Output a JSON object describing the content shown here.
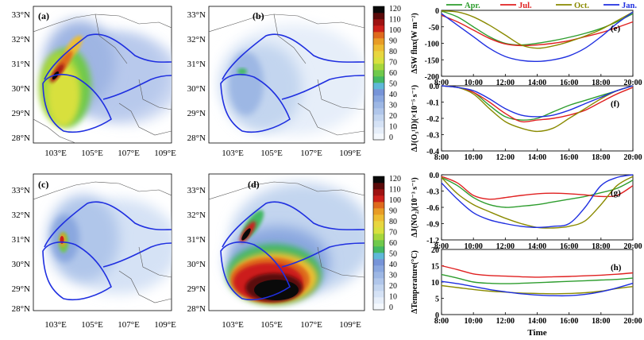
{
  "maps": [
    {
      "label": "(a)",
      "lat_ticks": [
        "33°N",
        "32°N",
        "31°N",
        "30°N",
        "29°N",
        "28°N"
      ],
      "lon_ticks": [
        "103°E",
        "105°E",
        "107°E",
        "109°E"
      ]
    },
    {
      "label": "(b)",
      "lat_ticks": [
        "33°N",
        "32°N",
        "31°N",
        "30°N",
        "29°N",
        "28°N"
      ],
      "lon_ticks": [
        "103°E",
        "105°E",
        "107°E",
        "109°E"
      ]
    },
    {
      "label": "(c)",
      "lat_ticks": [
        "33°N",
        "32°N",
        "31°N",
        "30°N",
        "29°N",
        "28°N"
      ],
      "lon_ticks": [
        "103°E",
        "105°E",
        "107°E",
        "109°E"
      ]
    },
    {
      "label": "(d)",
      "lat_ticks": [
        "33°N",
        "32°N",
        "31°N",
        "30°N",
        "29°N",
        "28°N"
      ],
      "lon_ticks": [
        "103°E",
        "105°E",
        "107°E",
        "109°E"
      ]
    }
  ],
  "colorbar_labels": [
    "120",
    "110",
    "100",
    "90",
    "80",
    "70",
    "60",
    "50",
    "40",
    "30",
    "20",
    "10",
    "0"
  ],
  "colorbar_colors": [
    "#f4f8fd",
    "#e6eef9",
    "#d5e2f5",
    "#c3d5ef",
    "#b0c6ea",
    "#9db7e4",
    "#8aa7df",
    "#7794d8",
    "#5fb8d8",
    "#43b864",
    "#6fc94c",
    "#a5d63c",
    "#d8e03e",
    "#e8d640",
    "#edbd33",
    "#e89c26",
    "#de6a1e",
    "#cc1f1a",
    "#9e1212",
    "#5a0a0a",
    "#0a0a0a"
  ],
  "chart_data": [
    {
      "type": "line",
      "label": "(e)",
      "ylabel": "ΔSW flux(W m⁻²)",
      "xlabel": "",
      "ylim": [
        -200,
        0
      ],
      "yticks": [
        "0",
        "-50",
        "-100",
        "-150",
        "-200"
      ],
      "x": [
        "8:00",
        "9:00",
        "10:00",
        "11:00",
        "12:00",
        "13:00",
        "14:00",
        "15:00",
        "16:00",
        "17:00",
        "18:00",
        "19:00",
        "20:00"
      ],
      "xticks": [
        "8:00",
        "10:00",
        "12:00",
        "14:00",
        "16:00",
        "18:00",
        "20:00"
      ],
      "series": [
        {
          "name": "Apr.",
          "color": "#2e9d2e",
          "values": [
            -2,
            -20,
            -50,
            -80,
            -100,
            -105,
            -100,
            -92,
            -82,
            -70,
            -55,
            -35,
            -10
          ]
        },
        {
          "name": "Jul.",
          "color": "#e02020",
          "values": [
            -15,
            -35,
            -60,
            -85,
            -102,
            -107,
            -105,
            -100,
            -92,
            -80,
            -68,
            -52,
            -35
          ]
        },
        {
          "name": "Oct.",
          "color": "#8a8a00",
          "values": [
            -2,
            -5,
            -20,
            -45,
            -75,
            -105,
            -115,
            -108,
            -95,
            -78,
            -58,
            -32,
            -5
          ]
        },
        {
          "name": "Jan.",
          "color": "#1f2fe0",
          "values": [
            -10,
            -45,
            -80,
            -115,
            -140,
            -152,
            -155,
            -150,
            -138,
            -115,
            -80,
            -40,
            -5
          ]
        }
      ]
    },
    {
      "type": "line",
      "label": "(f)",
      "ylabel": "ΔJ(O₃¹D)(×10⁻⁵ s⁻¹)",
      "xlabel": "",
      "ylim": [
        -0.4,
        0
      ],
      "yticks": [
        "0.0",
        "-0.1",
        "-0.2",
        "-0.3",
        "-0.4"
      ],
      "x": [
        "8:00",
        "9:00",
        "10:00",
        "11:00",
        "12:00",
        "13:00",
        "14:00",
        "15:00",
        "16:00",
        "17:00",
        "18:00",
        "19:00",
        "20:00"
      ],
      "xticks": [
        "8:00",
        "10:00",
        "12:00",
        "14:00",
        "16:00",
        "18:00",
        "20:00"
      ],
      "series": [
        {
          "name": "Apr.",
          "color": "#2e9d2e",
          "values": [
            0,
            -0.01,
            -0.04,
            -0.12,
            -0.19,
            -0.21,
            -0.2,
            -0.16,
            -0.12,
            -0.09,
            -0.06,
            -0.03,
            0
          ]
        },
        {
          "name": "Jul.",
          "color": "#e02020",
          "values": [
            0,
            -0.01,
            -0.04,
            -0.1,
            -0.17,
            -0.22,
            -0.21,
            -0.2,
            -0.18,
            -0.15,
            -0.1,
            -0.05,
            -0.01
          ]
        },
        {
          "name": "Oct.",
          "color": "#8a8a00",
          "values": [
            0,
            -0.01,
            -0.05,
            -0.14,
            -0.22,
            -0.26,
            -0.28,
            -0.26,
            -0.2,
            -0.14,
            -0.08,
            -0.03,
            0
          ]
        },
        {
          "name": "Jan.",
          "color": "#1f2fe0",
          "values": [
            0,
            -0.01,
            -0.03,
            -0.08,
            -0.14,
            -0.18,
            -0.19,
            -0.18,
            -0.15,
            -0.11,
            -0.07,
            -0.03,
            0
          ]
        }
      ]
    },
    {
      "type": "line",
      "label": "(g)",
      "ylabel": "ΔJ(NO₂)(10⁻³ s⁻¹)",
      "xlabel": "",
      "ylim": [
        -1.2,
        0
      ],
      "yticks": [
        "0.0",
        "-0.3",
        "-0.6",
        "-0.9",
        "-1.2"
      ],
      "x": [
        "8:00",
        "9:00",
        "10:00",
        "11:00",
        "12:00",
        "13:00",
        "14:00",
        "15:00",
        "16:00",
        "17:00",
        "18:00",
        "19:00",
        "20:00"
      ],
      "xticks": [
        "8:00",
        "10:00",
        "12:00",
        "14:00",
        "16:00",
        "18:00",
        "20:00"
      ],
      "series": [
        {
          "name": "Apr.",
          "color": "#2e9d2e",
          "values": [
            -0.05,
            -0.2,
            -0.42,
            -0.55,
            -0.6,
            -0.58,
            -0.55,
            -0.5,
            -0.45,
            -0.4,
            -0.33,
            -0.25,
            -0.1
          ]
        },
        {
          "name": "Jul.",
          "color": "#e02020",
          "values": [
            -0.03,
            -0.15,
            -0.38,
            -0.45,
            -0.42,
            -0.38,
            -0.35,
            -0.34,
            -0.35,
            -0.37,
            -0.4,
            -0.38,
            -0.2
          ]
        },
        {
          "name": "Oct.",
          "color": "#8a8a00",
          "values": [
            -0.05,
            -0.35,
            -0.55,
            -0.68,
            -0.8,
            -0.9,
            -0.97,
            -0.98,
            -0.95,
            -0.85,
            -0.55,
            -0.2,
            -0.03
          ]
        },
        {
          "name": "Jan.",
          "color": "#1f2fe0",
          "values": [
            -0.15,
            -0.45,
            -0.7,
            -0.83,
            -0.9,
            -0.95,
            -0.97,
            -0.95,
            -0.9,
            -0.6,
            -0.2,
            -0.05,
            0
          ]
        }
      ]
    },
    {
      "type": "line",
      "label": "(h)",
      "ylabel": "ΔTemperature(°C)",
      "xlabel": "Time",
      "ylim": [
        0,
        20
      ],
      "yticks": [
        "20",
        "15",
        "10",
        "5",
        "0"
      ],
      "x": [
        "8:00",
        "9:00",
        "10:00",
        "11:00",
        "12:00",
        "13:00",
        "14:00",
        "15:00",
        "16:00",
        "17:00",
        "18:00",
        "19:00",
        "20:00"
      ],
      "xticks": [
        "8:00",
        "10:00",
        "12:00",
        "14:00",
        "16:00",
        "18:00",
        "20:00"
      ],
      "series": [
        {
          "name": "Apr.",
          "color": "#2e9d2e",
          "values": [
            12.3,
            11.2,
            10,
            9.6,
            9.5,
            9.6,
            9.8,
            10,
            10.2,
            10.4,
            10.6,
            10.8,
            11.2
          ]
        },
        {
          "name": "Jul.",
          "color": "#e02020",
          "values": [
            15,
            13.8,
            12.5,
            12,
            11.8,
            11.6,
            11.5,
            11.6,
            11.7,
            11.9,
            12.1,
            12.4,
            12.8
          ]
        },
        {
          "name": "Oct.",
          "color": "#8a8a00",
          "values": [
            8.9,
            8.3,
            7.7,
            7.2,
            6.9,
            6.6,
            6.5,
            6.4,
            6.5,
            6.7,
            7.2,
            8,
            8.6
          ]
        },
        {
          "name": "Jan.",
          "color": "#1f2fe0",
          "values": [
            10.2,
            9.5,
            8.6,
            7.7,
            7,
            6.4,
            6,
            5.8,
            5.8,
            6.2,
            7,
            8.2,
            9.6
          ]
        }
      ]
    }
  ]
}
